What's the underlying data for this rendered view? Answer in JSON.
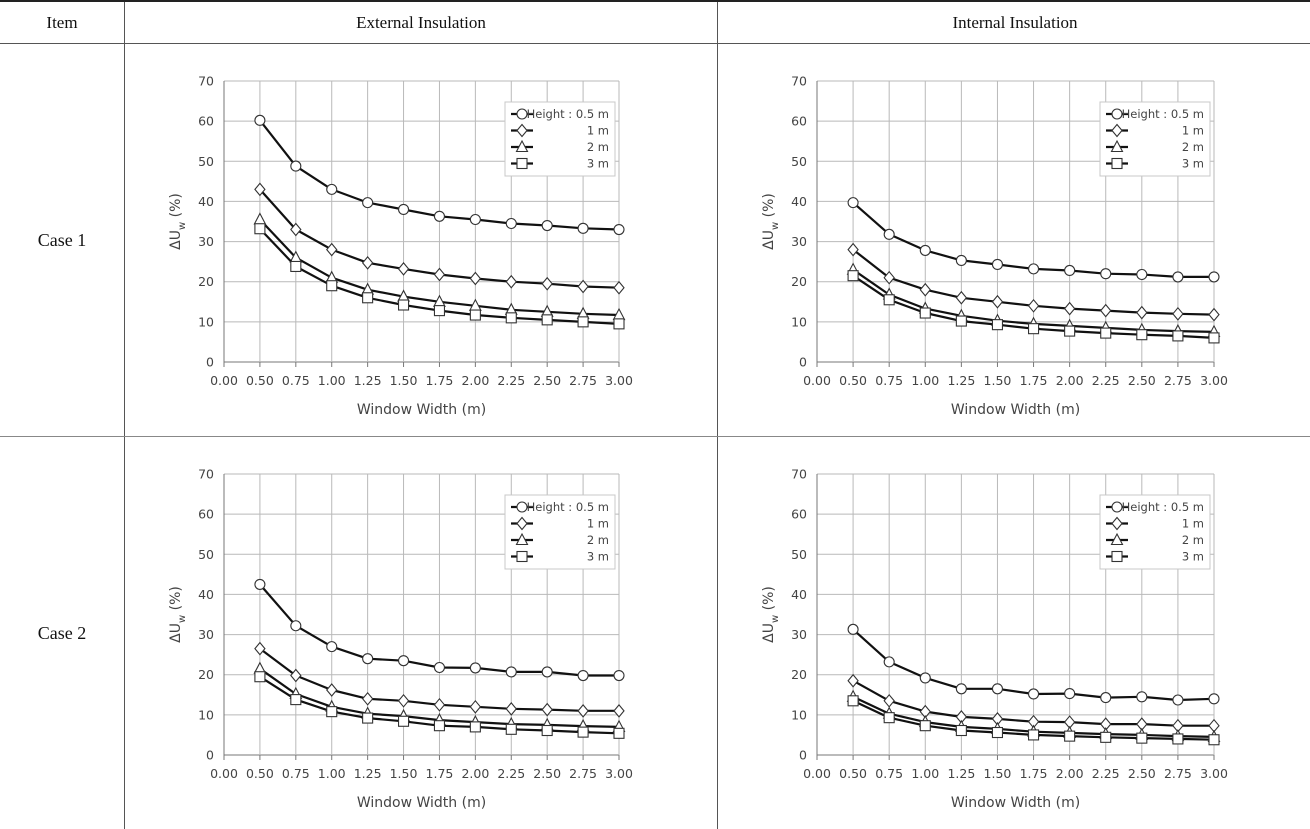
{
  "table": {
    "headers": [
      "Item",
      "External Insulation",
      "Internal Insulation"
    ],
    "rows": [
      "Case 1",
      "Case 2"
    ]
  },
  "chart_data": [
    {
      "id": "case1-external",
      "type": "line",
      "xlabel": "Window Width (m)",
      "ylabel": "ΔU",
      "ylabel_sub": "w",
      "ylabel_suffix": " (%)",
      "xlim": [
        0,
        3
      ],
      "ylim": [
        0,
        70
      ],
      "xticks": [
        "0.00",
        "0.50",
        "0.75",
        "1.00",
        "1.25",
        "1.50",
        "1.75",
        "2.00",
        "2.25",
        "2.50",
        "2.75",
        "3.00"
      ],
      "yticks": [
        "0",
        "10",
        "20",
        "30",
        "40",
        "50",
        "60",
        "70"
      ],
      "grid": true,
      "legend": "top-right",
      "x": [
        0.5,
        0.75,
        1.0,
        1.25,
        1.5,
        1.75,
        2.0,
        2.25,
        2.5,
        2.75,
        3.0
      ],
      "series": [
        {
          "name": "Height : 0.5 m",
          "marker": "circle",
          "values": [
            60.2,
            48.8,
            43.0,
            39.7,
            38.0,
            36.3,
            35.5,
            34.5,
            34.0,
            33.3,
            33.0
          ]
        },
        {
          "name": "1 m",
          "marker": "diamond",
          "values": [
            43.0,
            33.0,
            28.0,
            24.7,
            23.2,
            21.8,
            20.8,
            20.0,
            19.5,
            18.8,
            18.5
          ]
        },
        {
          "name": "2 m",
          "marker": "triangle",
          "values": [
            35.5,
            26.0,
            21.0,
            18.0,
            16.3,
            15.0,
            14.0,
            13.0,
            12.5,
            12.0,
            11.7
          ]
        },
        {
          "name": "3 m",
          "marker": "square",
          "values": [
            33.2,
            23.8,
            19.0,
            16.0,
            14.2,
            12.8,
            11.7,
            11.0,
            10.5,
            10.0,
            9.5
          ]
        }
      ]
    },
    {
      "id": "case1-internal",
      "type": "line",
      "xlabel": "Window Width (m)",
      "ylabel": "ΔU",
      "ylabel_sub": "w",
      "ylabel_suffix": " (%)",
      "xlim": [
        0,
        3
      ],
      "ylim": [
        0,
        70
      ],
      "xticks": [
        "0.00",
        "0.50",
        "0.75",
        "1.00",
        "1.25",
        "1.50",
        "1.75",
        "2.00",
        "2.25",
        "2.50",
        "2.75",
        "3.00"
      ],
      "yticks": [
        "0",
        "10",
        "20",
        "30",
        "40",
        "50",
        "60",
        "70"
      ],
      "grid": true,
      "legend": "top-right",
      "x": [
        0.5,
        0.75,
        1.0,
        1.25,
        1.5,
        1.75,
        2.0,
        2.25,
        2.5,
        2.75,
        3.0
      ],
      "series": [
        {
          "name": "Height : 0.5 m",
          "marker": "circle",
          "values": [
            39.7,
            31.8,
            27.8,
            25.3,
            24.3,
            23.2,
            22.8,
            22.0,
            21.8,
            21.2,
            21.2
          ]
        },
        {
          "name": "1 m",
          "marker": "diamond",
          "values": [
            28.0,
            21.0,
            18.0,
            16.0,
            15.0,
            14.0,
            13.3,
            12.8,
            12.3,
            12.0,
            11.8
          ]
        },
        {
          "name": "2 m",
          "marker": "triangle",
          "values": [
            23.0,
            16.8,
            13.3,
            11.5,
            10.3,
            9.5,
            9.0,
            8.5,
            8.0,
            7.7,
            7.5
          ]
        },
        {
          "name": "3 m",
          "marker": "square",
          "values": [
            21.5,
            15.5,
            12.2,
            10.2,
            9.3,
            8.3,
            7.7,
            7.2,
            6.8,
            6.5,
            6.0
          ]
        }
      ]
    },
    {
      "id": "case2-external",
      "type": "line",
      "xlabel": "Window Width (m)",
      "ylabel": "ΔU",
      "ylabel_sub": "w",
      "ylabel_suffix": " (%)",
      "xlim": [
        0,
        3
      ],
      "ylim": [
        0,
        70
      ],
      "xticks": [
        "0.00",
        "0.50",
        "0.75",
        "1.00",
        "1.25",
        "1.50",
        "1.75",
        "2.00",
        "2.25",
        "2.50",
        "2.75",
        "3.00"
      ],
      "yticks": [
        "0",
        "10",
        "20",
        "30",
        "40",
        "50",
        "60",
        "70"
      ],
      "grid": true,
      "legend": "top-right",
      "x": [
        0.5,
        0.75,
        1.0,
        1.25,
        1.5,
        1.75,
        2.0,
        2.25,
        2.5,
        2.75,
        3.0
      ],
      "series": [
        {
          "name": "Height : 0.5 m",
          "marker": "circle",
          "values": [
            42.5,
            32.2,
            27.0,
            24.0,
            23.5,
            21.8,
            21.7,
            20.7,
            20.7,
            19.8,
            19.8
          ]
        },
        {
          "name": "1 m",
          "marker": "diamond",
          "values": [
            26.5,
            19.8,
            16.2,
            14.0,
            13.5,
            12.5,
            12.0,
            11.5,
            11.3,
            11.0,
            11.0
          ]
        },
        {
          "name": "2 m",
          "marker": "triangle",
          "values": [
            21.5,
            15.2,
            12.0,
            10.3,
            9.7,
            8.7,
            8.2,
            7.7,
            7.5,
            7.2,
            7.0
          ]
        },
        {
          "name": "3 m",
          "marker": "square",
          "values": [
            19.5,
            13.8,
            10.8,
            9.2,
            8.4,
            7.3,
            7.0,
            6.4,
            6.1,
            5.7,
            5.4
          ]
        }
      ]
    },
    {
      "id": "case2-internal",
      "type": "line",
      "xlabel": "Window Width (m)",
      "ylabel": "ΔU",
      "ylabel_sub": "w",
      "ylabel_suffix": " (%)",
      "xlim": [
        0,
        3
      ],
      "ylim": [
        0,
        70
      ],
      "xticks": [
        "0.00",
        "0.50",
        "0.75",
        "1.00",
        "1.25",
        "1.50",
        "1.75",
        "2.00",
        "2.25",
        "2.50",
        "2.75",
        "3.00"
      ],
      "yticks": [
        "0",
        "10",
        "20",
        "30",
        "40",
        "50",
        "60",
        "70"
      ],
      "grid": true,
      "legend": "top-right",
      "x": [
        0.5,
        0.75,
        1.0,
        1.25,
        1.5,
        1.75,
        2.0,
        2.25,
        2.5,
        2.75,
        3.0
      ],
      "series": [
        {
          "name": "Height : 0.5 m",
          "marker": "circle",
          "values": [
            31.3,
            23.2,
            19.2,
            16.5,
            16.5,
            15.2,
            15.3,
            14.3,
            14.5,
            13.7,
            14.0
          ]
        },
        {
          "name": "1 m",
          "marker": "diamond",
          "values": [
            18.5,
            13.5,
            10.8,
            9.5,
            9.0,
            8.3,
            8.2,
            7.7,
            7.7,
            7.3,
            7.3
          ]
        },
        {
          "name": "2 m",
          "marker": "triangle",
          "values": [
            14.5,
            10.3,
            8.2,
            7.0,
            6.5,
            5.8,
            5.5,
            5.2,
            5.0,
            4.7,
            4.5
          ]
        },
        {
          "name": "3 m",
          "marker": "square",
          "values": [
            13.5,
            9.3,
            7.3,
            6.1,
            5.6,
            5.0,
            4.7,
            4.4,
            4.2,
            4.0,
            3.8
          ]
        }
      ]
    }
  ]
}
